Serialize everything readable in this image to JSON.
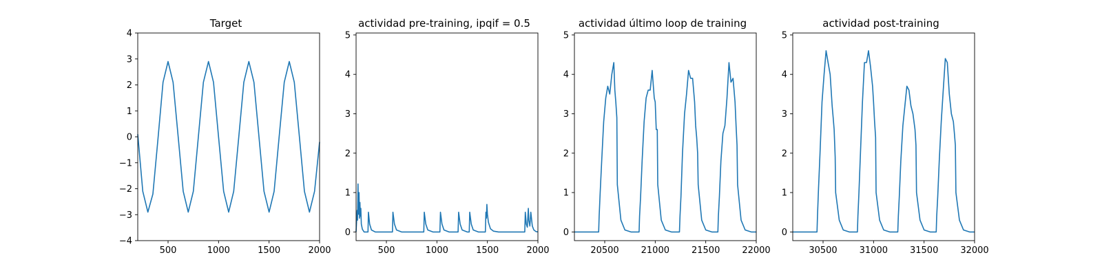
{
  "figure": {
    "background": "#ffffff",
    "line_color": "#1f77b4"
  },
  "chart_data": [
    {
      "type": "line",
      "title": "Target",
      "xlabel": "",
      "ylabel": "",
      "xlim": [
        200,
        2000
      ],
      "ylim": [
        -4,
        4
      ],
      "xticks": [
        500,
        1000,
        1500,
        2000
      ],
      "yticks": [
        -4,
        -3,
        -2,
        -1,
        0,
        1,
        2,
        3,
        4
      ],
      "xtick_labels": [
        "500",
        "1000",
        "1500",
        "2000"
      ],
      "ytick_labels": [
        "−4",
        "−3",
        "−2",
        "−1",
        "0",
        "1",
        "2",
        "3",
        "4"
      ],
      "grid": false,
      "series": [
        {
          "x": [
            200,
            250,
            300,
            350,
            400,
            450,
            500,
            550,
            600,
            650,
            700,
            750,
            800,
            850,
            900,
            950,
            1000,
            1050,
            1100,
            1150,
            1200,
            1250,
            1300,
            1350,
            1400,
            1450,
            1500,
            1550,
            1600,
            1650,
            1700,
            1750,
            1800,
            1850,
            1900,
            1950,
            2000
          ],
          "y": [
            0.1,
            -2.1,
            -2.9,
            -2.2,
            -0.1,
            2.1,
            2.9,
            2.1,
            0.0,
            -2.1,
            -2.9,
            -2.1,
            0.0,
            2.1,
            2.9,
            2.1,
            0.0,
            -2.1,
            -2.9,
            -2.1,
            0.0,
            2.1,
            2.9,
            2.1,
            0.0,
            -2.1,
            -2.9,
            -2.1,
            0.0,
            2.1,
            2.9,
            2.1,
            0.0,
            -2.1,
            -2.9,
            -2.1,
            -0.2
          ]
        }
      ]
    },
    {
      "type": "line",
      "title": "actividad pre-training, ipqif = 0.5",
      "xlabel": "",
      "ylabel": "",
      "xlim": [
        200,
        2000
      ],
      "ylim": [
        -0.22,
        5.05
      ],
      "xticks": [
        500,
        1000,
        1500,
        2000
      ],
      "yticks": [
        0,
        1,
        2,
        3,
        4,
        5
      ],
      "xtick_labels": [
        "500",
        "1000",
        "1500",
        "2000"
      ],
      "ytick_labels": [
        "0",
        "1",
        "2",
        "3",
        "4",
        "5"
      ],
      "grid": false,
      "series": [
        {
          "x": [
            200,
            210,
            214,
            219,
            224,
            229,
            234,
            238,
            242,
            247,
            252,
            262,
            280,
            318,
            322,
            334,
            352,
            390,
            560,
            565,
            580,
            600,
            650,
            870,
            875,
            890,
            910,
            960,
            1030,
            1035,
            1050,
            1070,
            1120,
            1210,
            1215,
            1230,
            1250,
            1300,
            1320,
            1325,
            1340,
            1360,
            1410,
            1480,
            1485,
            1490,
            1495,
            1500,
            1510,
            1530,
            1560,
            1610,
            1870,
            1875,
            1885,
            1895,
            1905,
            1910,
            1920,
            1930,
            1945,
            1960,
            1980,
            2000
          ],
          "y": [
            0.0,
            0.55,
            0.3,
            1.22,
            0.45,
            1.0,
            0.35,
            0.75,
            0.4,
            0.6,
            0.2,
            0.07,
            0.0,
            0.0,
            0.5,
            0.2,
            0.05,
            0.0,
            0.0,
            0.5,
            0.2,
            0.05,
            0.0,
            0.0,
            0.5,
            0.2,
            0.05,
            0.0,
            0.0,
            0.5,
            0.2,
            0.05,
            0.0,
            0.0,
            0.5,
            0.2,
            0.05,
            0.0,
            0.0,
            0.5,
            0.2,
            0.05,
            0.0,
            0.0,
            0.5,
            0.35,
            0.7,
            0.45,
            0.25,
            0.08,
            0.02,
            0.0,
            0.0,
            0.5,
            0.2,
            0.12,
            0.6,
            0.3,
            0.15,
            0.5,
            0.15,
            0.05,
            0.01,
            0.0
          ]
        }
      ]
    },
    {
      "type": "line",
      "title": "actividad último loop de training",
      "xlabel": "",
      "ylabel": "",
      "xlim": [
        20200,
        22000
      ],
      "ylim": [
        -0.22,
        5.05
      ],
      "xticks": [
        20500,
        21000,
        21500,
        22000
      ],
      "yticks": [
        0,
        1,
        2,
        3,
        4,
        5
      ],
      "xtick_labels": [
        "20500",
        "21000",
        "21500",
        "22000"
      ],
      "ytick_labels": [
        "0",
        "1",
        "2",
        "3",
        "4",
        "5"
      ],
      "grid": false,
      "series": [
        {
          "x": [
            20200,
            20440,
            20445,
            20455,
            20470,
            20490,
            20510,
            20530,
            20550,
            20570,
            20590,
            20600,
            20610,
            20620,
            20625,
            20660,
            20700,
            20760,
            20840,
            20845,
            20855,
            20870,
            20890,
            20910,
            20930,
            20950,
            20970,
            20990,
            21000,
            21010,
            21020,
            21025,
            21060,
            21100,
            21160,
            21240,
            21245,
            21255,
            21270,
            21290,
            21310,
            21330,
            21350,
            21370,
            21390,
            21400,
            21410,
            21420,
            21425,
            21460,
            21500,
            21560,
            21620,
            21625,
            21635,
            21650,
            21670,
            21690,
            21710,
            21730,
            21750,
            21770,
            21790,
            21800,
            21810,
            21815,
            21850,
            21890,
            21950,
            22000
          ],
          "y": [
            0.0,
            0.0,
            0.4,
            1.0,
            1.8,
            2.8,
            3.4,
            3.7,
            3.5,
            4.0,
            4.3,
            3.6,
            3.3,
            2.9,
            1.2,
            0.3,
            0.05,
            0.0,
            0.0,
            0.4,
            0.9,
            1.8,
            2.8,
            3.4,
            3.6,
            3.6,
            4.1,
            3.4,
            3.3,
            2.6,
            2.6,
            1.2,
            0.3,
            0.05,
            0.0,
            0.0,
            0.4,
            0.9,
            2.0,
            3.0,
            3.5,
            4.1,
            3.9,
            3.9,
            3.3,
            2.7,
            2.4,
            2.0,
            1.2,
            0.3,
            0.05,
            0.0,
            0.0,
            0.4,
            0.9,
            1.8,
            2.5,
            2.7,
            3.4,
            4.3,
            3.8,
            3.9,
            3.3,
            2.7,
            2.2,
            1.2,
            0.3,
            0.05,
            0.0,
            0.0
          ]
        }
      ]
    },
    {
      "type": "line",
      "title": "actividad post-training",
      "xlabel": "",
      "ylabel": "",
      "xlim": [
        30200,
        32000
      ],
      "ylim": [
        -0.22,
        5.05
      ],
      "xticks": [
        30500,
        31000,
        31500,
        32000
      ],
      "yticks": [
        0,
        1,
        2,
        3,
        4,
        5
      ],
      "xtick_labels": [
        "30500",
        "31000",
        "31500",
        "32000"
      ],
      "ytick_labels": [
        "0",
        "1",
        "2",
        "3",
        "4",
        "5"
      ],
      "grid": false,
      "series": [
        {
          "x": [
            30200,
            30440,
            30445,
            30455,
            30470,
            30490,
            30510,
            30530,
            30550,
            30570,
            30590,
            30600,
            30610,
            30620,
            30625,
            30660,
            30700,
            30760,
            30840,
            30845,
            30855,
            30870,
            30890,
            30910,
            30930,
            30950,
            30970,
            30990,
            31000,
            31010,
            31020,
            31025,
            31060,
            31100,
            31160,
            31240,
            31245,
            31255,
            31270,
            31290,
            31310,
            31330,
            31350,
            31370,
            31390,
            31400,
            31410,
            31420,
            31425,
            31460,
            31500,
            31560,
            31620,
            31625,
            31635,
            31650,
            31670,
            31690,
            31710,
            31730,
            31750,
            31770,
            31790,
            31800,
            31810,
            31815,
            31850,
            31890,
            31950,
            32000
          ],
          "y": [
            0.0,
            0.0,
            0.4,
            1.1,
            2.0,
            3.3,
            4.0,
            4.6,
            4.3,
            4.0,
            3.2,
            2.9,
            2.6,
            1.9,
            1.0,
            0.3,
            0.05,
            0.0,
            0.0,
            0.4,
            1.0,
            2.0,
            3.3,
            4.3,
            4.3,
            4.6,
            4.2,
            3.7,
            3.3,
            2.8,
            2.4,
            1.0,
            0.3,
            0.05,
            0.0,
            0.0,
            0.4,
            0.9,
            1.8,
            2.7,
            3.2,
            3.7,
            3.6,
            3.2,
            3.0,
            2.8,
            2.6,
            2.2,
            1.0,
            0.3,
            0.05,
            0.0,
            0.0,
            0.4,
            0.9,
            1.8,
            2.8,
            3.6,
            4.4,
            4.3,
            3.5,
            3.0,
            2.8,
            2.5,
            2.2,
            1.0,
            0.3,
            0.05,
            0.0,
            0.0
          ]
        }
      ]
    }
  ]
}
